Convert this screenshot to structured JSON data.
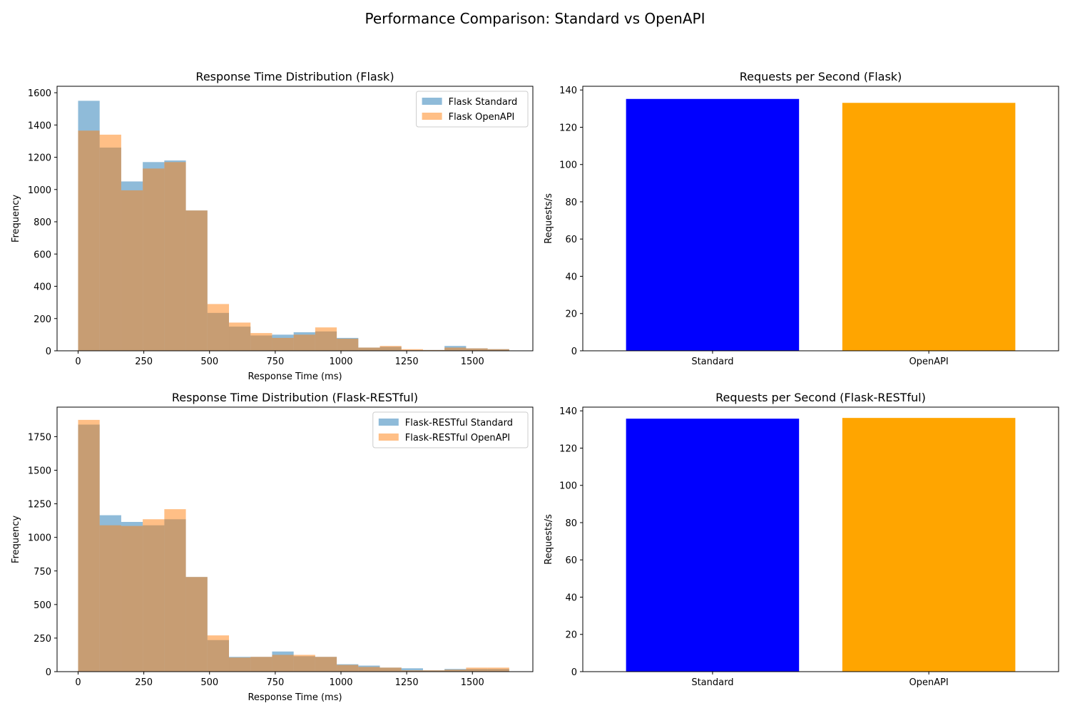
{
  "figure": {
    "title": "Performance Comparison: Standard vs OpenAPI"
  },
  "chart_data": [
    {
      "type": "histogram",
      "title": "Response Time Distribution (Flask)",
      "xlabel": "Response Time (ms)",
      "ylabel": "Frequency",
      "xlim": [
        -80,
        1730
      ],
      "ylim": [
        0,
        1640
      ],
      "xticks": [
        0,
        250,
        500,
        750,
        1000,
        1250,
        1500
      ],
      "yticks": [
        0,
        200,
        400,
        600,
        800,
        1000,
        1200,
        1400,
        1600
      ],
      "legend_position": "top-right",
      "series": [
        {
          "name": "Flask Standard",
          "color": "#1f77b4",
          "bin_edges": [
            0,
            82,
            164,
            246,
            328,
            410,
            492,
            574,
            656,
            738,
            820,
            902,
            984,
            1066,
            1148,
            1230,
            1312,
            1394,
            1476,
            1558,
            1640
          ],
          "values": [
            1550,
            1260,
            1050,
            1170,
            1180,
            870,
            235,
            150,
            95,
            100,
            115,
            120,
            80,
            20,
            25,
            5,
            5,
            30,
            15,
            10
          ]
        },
        {
          "name": "Flask OpenAPI",
          "color": "#ff7f0e",
          "bin_edges": [
            0,
            82,
            164,
            246,
            328,
            410,
            492,
            574,
            656,
            738,
            820,
            902,
            984,
            1066,
            1148,
            1230,
            1312,
            1394,
            1476,
            1558,
            1640
          ],
          "values": [
            1365,
            1340,
            995,
            1130,
            1170,
            870,
            290,
            175,
            110,
            80,
            100,
            145,
            75,
            20,
            30,
            10,
            5,
            20,
            15,
            10
          ]
        }
      ]
    },
    {
      "type": "bar",
      "title": "Requests per Second (Flask)",
      "xlabel": "",
      "ylabel": "Requests/s",
      "ylim": [
        0,
        142
      ],
      "yticks": [
        0,
        20,
        40,
        60,
        80,
        100,
        120,
        140
      ],
      "categories": [
        "Standard",
        "OpenAPI"
      ],
      "values": [
        135.2,
        133.1
      ],
      "colors": [
        "#0000ff",
        "#ffa500"
      ]
    },
    {
      "type": "histogram",
      "title": "Response Time Distribution (Flask-RESTful)",
      "xlabel": "Response Time (ms)",
      "ylabel": "Frequency",
      "xlim": [
        -80,
        1730
      ],
      "ylim": [
        0,
        1970
      ],
      "xticks": [
        0,
        250,
        500,
        750,
        1000,
        1250,
        1500
      ],
      "yticks": [
        0,
        250,
        500,
        750,
        1000,
        1250,
        1500,
        1750
      ],
      "legend_position": "top-right",
      "series": [
        {
          "name": "Flask-RESTful Standard",
          "color": "#1f77b4",
          "bin_edges": [
            0,
            82,
            164,
            246,
            328,
            410,
            492,
            574,
            656,
            738,
            820,
            902,
            984,
            1066,
            1148,
            1230,
            1312,
            1394,
            1476,
            1558,
            1640
          ],
          "values": [
            1840,
            1165,
            1115,
            1090,
            1135,
            705,
            235,
            110,
            110,
            150,
            115,
            110,
            55,
            45,
            30,
            25,
            10,
            20,
            20,
            20
          ]
        },
        {
          "name": "Flask-RESTful OpenAPI",
          "color": "#ff7f0e",
          "bin_edges": [
            0,
            82,
            164,
            246,
            328,
            410,
            492,
            574,
            656,
            738,
            820,
            902,
            984,
            1066,
            1148,
            1230,
            1312,
            1394,
            1476,
            1558,
            1640
          ],
          "values": [
            1875,
            1090,
            1085,
            1135,
            1210,
            705,
            270,
            105,
            110,
            125,
            125,
            110,
            50,
            35,
            30,
            10,
            10,
            15,
            30,
            30
          ]
        }
      ]
    },
    {
      "type": "bar",
      "title": "Requests per Second (Flask-RESTful)",
      "xlabel": "",
      "ylabel": "Requests/s",
      "ylim": [
        0,
        142
      ],
      "yticks": [
        0,
        20,
        40,
        60,
        80,
        100,
        120,
        140
      ],
      "categories": [
        "Standard",
        "OpenAPI"
      ],
      "values": [
        135.8,
        136.2
      ],
      "colors": [
        "#0000ff",
        "#ffa500"
      ]
    }
  ]
}
